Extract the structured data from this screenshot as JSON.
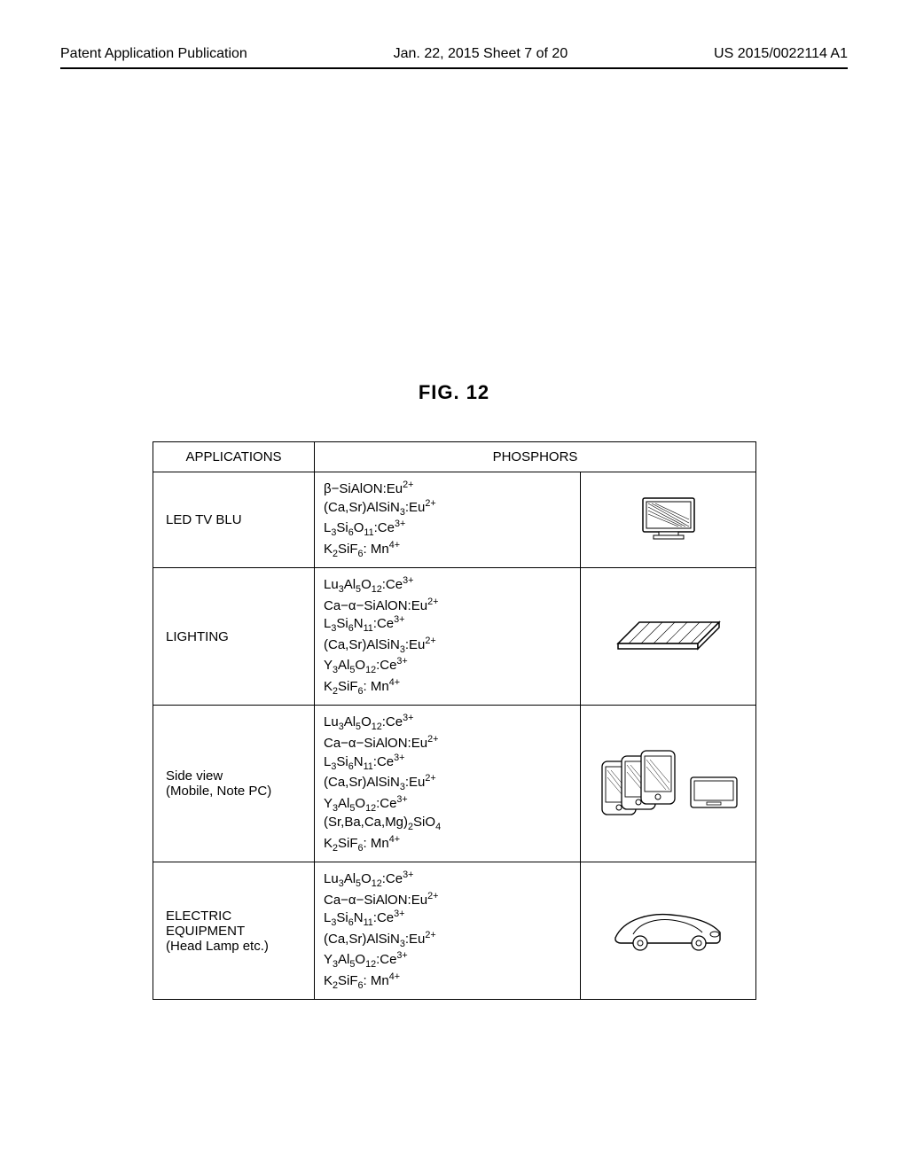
{
  "header": {
    "left": "Patent Application Publication",
    "center": "Jan. 22, 2015  Sheet 7 of 20",
    "right": "US 2015/0022114 A1"
  },
  "figure_label": "FIG.  12",
  "table": {
    "col_header_applications": "APPLICATIONS",
    "col_header_phosphors": "PHOSPHORS",
    "rows": [
      {
        "app_lines": [
          "LED TV BLU"
        ],
        "phosphors": [
          "β−SiAlON:Eu<sup>2+</sup>",
          "(Ca,Sr)AlSiN<sub>3</sub>:Eu<sup>2+</sup>",
          "L<sub>3</sub>Si<sub>6</sub>O<sub>11</sub>:Ce<sup>3+</sup>",
          "K<sub>2</sub>SiF<sub>6</sub>: Mn<sup>4+</sup>"
        ],
        "icon": "tv"
      },
      {
        "app_lines": [
          "LIGHTING"
        ],
        "phosphors": [
          "Lu<sub>3</sub>Al<sub>5</sub>O<sub>12</sub>:Ce<sup>3+</sup>",
          "Ca−α−SiAlON:Eu<sup>2+</sup>",
          "L<sub>3</sub>Si<sub>6</sub>N<sub>11</sub>:Ce<sup>3+</sup>",
          "(Ca,Sr)AlSiN<sub>3</sub>:Eu<sup>2+</sup>",
          "Y<sub>3</sub>Al<sub>5</sub>O<sub>12</sub>:Ce<sup>3+</sup>",
          "K<sub>2</sub>SiF<sub>6</sub>: Mn<sup>4+</sup>"
        ],
        "icon": "panel"
      },
      {
        "app_lines": [
          "Side view",
          "(Mobile, Note PC)"
        ],
        "phosphors": [
          "Lu<sub>3</sub>Al<sub>5</sub>O<sub>12</sub>:Ce<sup>3+</sup>",
          "Ca−α−SiAlON:Eu<sup>2+</sup>",
          "L<sub>3</sub>Si<sub>6</sub>N<sub>11</sub>:Ce<sup>3+</sup>",
          "(Ca,Sr)AlSiN<sub>3</sub>:Eu<sup>2+</sup>",
          "Y<sub>3</sub>Al<sub>5</sub>O<sub>12</sub>:Ce<sup>3+</sup>",
          "(Sr,Ba,Ca,Mg)<sub>2</sub>SiO<sub>4</sub>",
          "K<sub>2</sub>SiF<sub>6</sub>: Mn<sup>4+</sup>"
        ],
        "icon": "phones"
      },
      {
        "app_lines": [
          "ELECTRIC EQUIPMENT",
          "(Head Lamp etc.)"
        ],
        "phosphors": [
          "Lu<sub>3</sub>Al<sub>5</sub>O<sub>12</sub>:Ce<sup>3+</sup>",
          "Ca−α−SiAlON:Eu<sup>2+</sup>",
          "L<sub>3</sub>Si<sub>6</sub>N<sub>11</sub>:Ce<sup>3+</sup>",
          "(Ca,Sr)AlSiN<sub>3</sub>:Eu<sup>2+</sup>",
          "Y<sub>3</sub>Al<sub>5</sub>O<sub>12</sub>:Ce<sup>3+</sup>",
          "K<sub>2</sub>SiF<sub>6</sub>: Mn<sup>4+</sup>"
        ],
        "icon": "car"
      }
    ]
  },
  "icons": {
    "tv": "tv-icon",
    "panel": "panel-icon",
    "phones": "phones-icon",
    "car": "car-icon"
  },
  "colors": {
    "stroke": "#000000",
    "fill": "#ffffff",
    "hatch": "#7a7a7a"
  }
}
